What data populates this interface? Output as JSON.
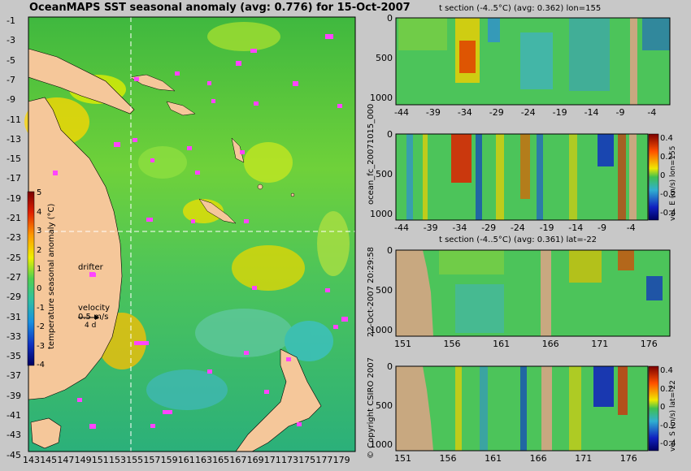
{
  "map": {
    "title": "OceanMAPS SST seasonal anomaly (avg: 0.776) for 15-Oct-2007",
    "y_ticks": [
      "-1",
      "-3",
      "-5",
      "-7",
      "-9",
      "-11",
      "-13",
      "-15",
      "-17",
      "-19",
      "-21",
      "-23",
      "-25",
      "-27",
      "-29",
      "-31",
      "-33",
      "-35",
      "-37",
      "-39",
      "-41",
      "-43",
      "-45"
    ],
    "x_ticks": [
      "143",
      "145",
      "147",
      "149",
      "151",
      "153",
      "155",
      "157",
      "159",
      "161",
      "163",
      "165",
      "167",
      "169",
      "171",
      "173",
      "175",
      "177",
      "179"
    ],
    "colorbar": {
      "label": "temperature seasonal anomaly (°C)",
      "ticks": [
        "5",
        "4",
        "3",
        "2",
        "1",
        "0",
        "-1",
        "-2",
        "-3",
        "-4"
      ]
    },
    "legend": {
      "drifter": "drifter",
      "velocity": "velocity",
      "velocity_value": "0.5 m/s",
      "velocity_sub": "4 d"
    },
    "colors": {
      "land": "#f5c79a",
      "drifter": "#ff44ff",
      "crosshair": "#ffffff"
    }
  },
  "panels": [
    {
      "title": "t section (-4..5°C) (avg: 0.362) lon=155",
      "y_ticks": [
        "0",
        "500",
        "1000"
      ],
      "x_ticks": [
        "-44",
        "-39",
        "-34",
        "-29",
        "-24",
        "-19",
        "-14",
        "-9",
        "-4"
      ]
    },
    {
      "title": "",
      "y_ticks": [
        "0",
        "500",
        "1000"
      ],
      "x_ticks": [
        "-44",
        "-39",
        "-34",
        "-29",
        "-24",
        "-19",
        "-14",
        "-9",
        "-4"
      ],
      "colorbar_label": "vel. E (m/s) lon=155",
      "colorbar_ticks": [
        "0.4",
        "0.2",
        "0",
        "-0.2",
        "-0.4"
      ]
    },
    {
      "title": "t section (-4..5°C) (avg: 0.361) lat=-22",
      "y_ticks": [
        "0",
        "500",
        "1000"
      ],
      "x_ticks": [
        "151",
        "156",
        "161",
        "166",
        "171",
        "176"
      ]
    },
    {
      "title": "",
      "y_ticks": [
        "0",
        "500",
        "1000"
      ],
      "x_ticks": [
        "151",
        "156",
        "161",
        "166",
        "171",
        "176"
      ],
      "colorbar_label": "vel. S (m/s) lat=-22",
      "colorbar_ticks": [
        "0.4",
        "0.2",
        "0",
        "-0.2",
        "-0.4"
      ]
    }
  ],
  "side_labels": {
    "run": "ocean_fc_20071015_000",
    "timestamp": "22-Oct-2007 20:29:58",
    "copyright": "© Copyright CSIRO 2007"
  }
}
